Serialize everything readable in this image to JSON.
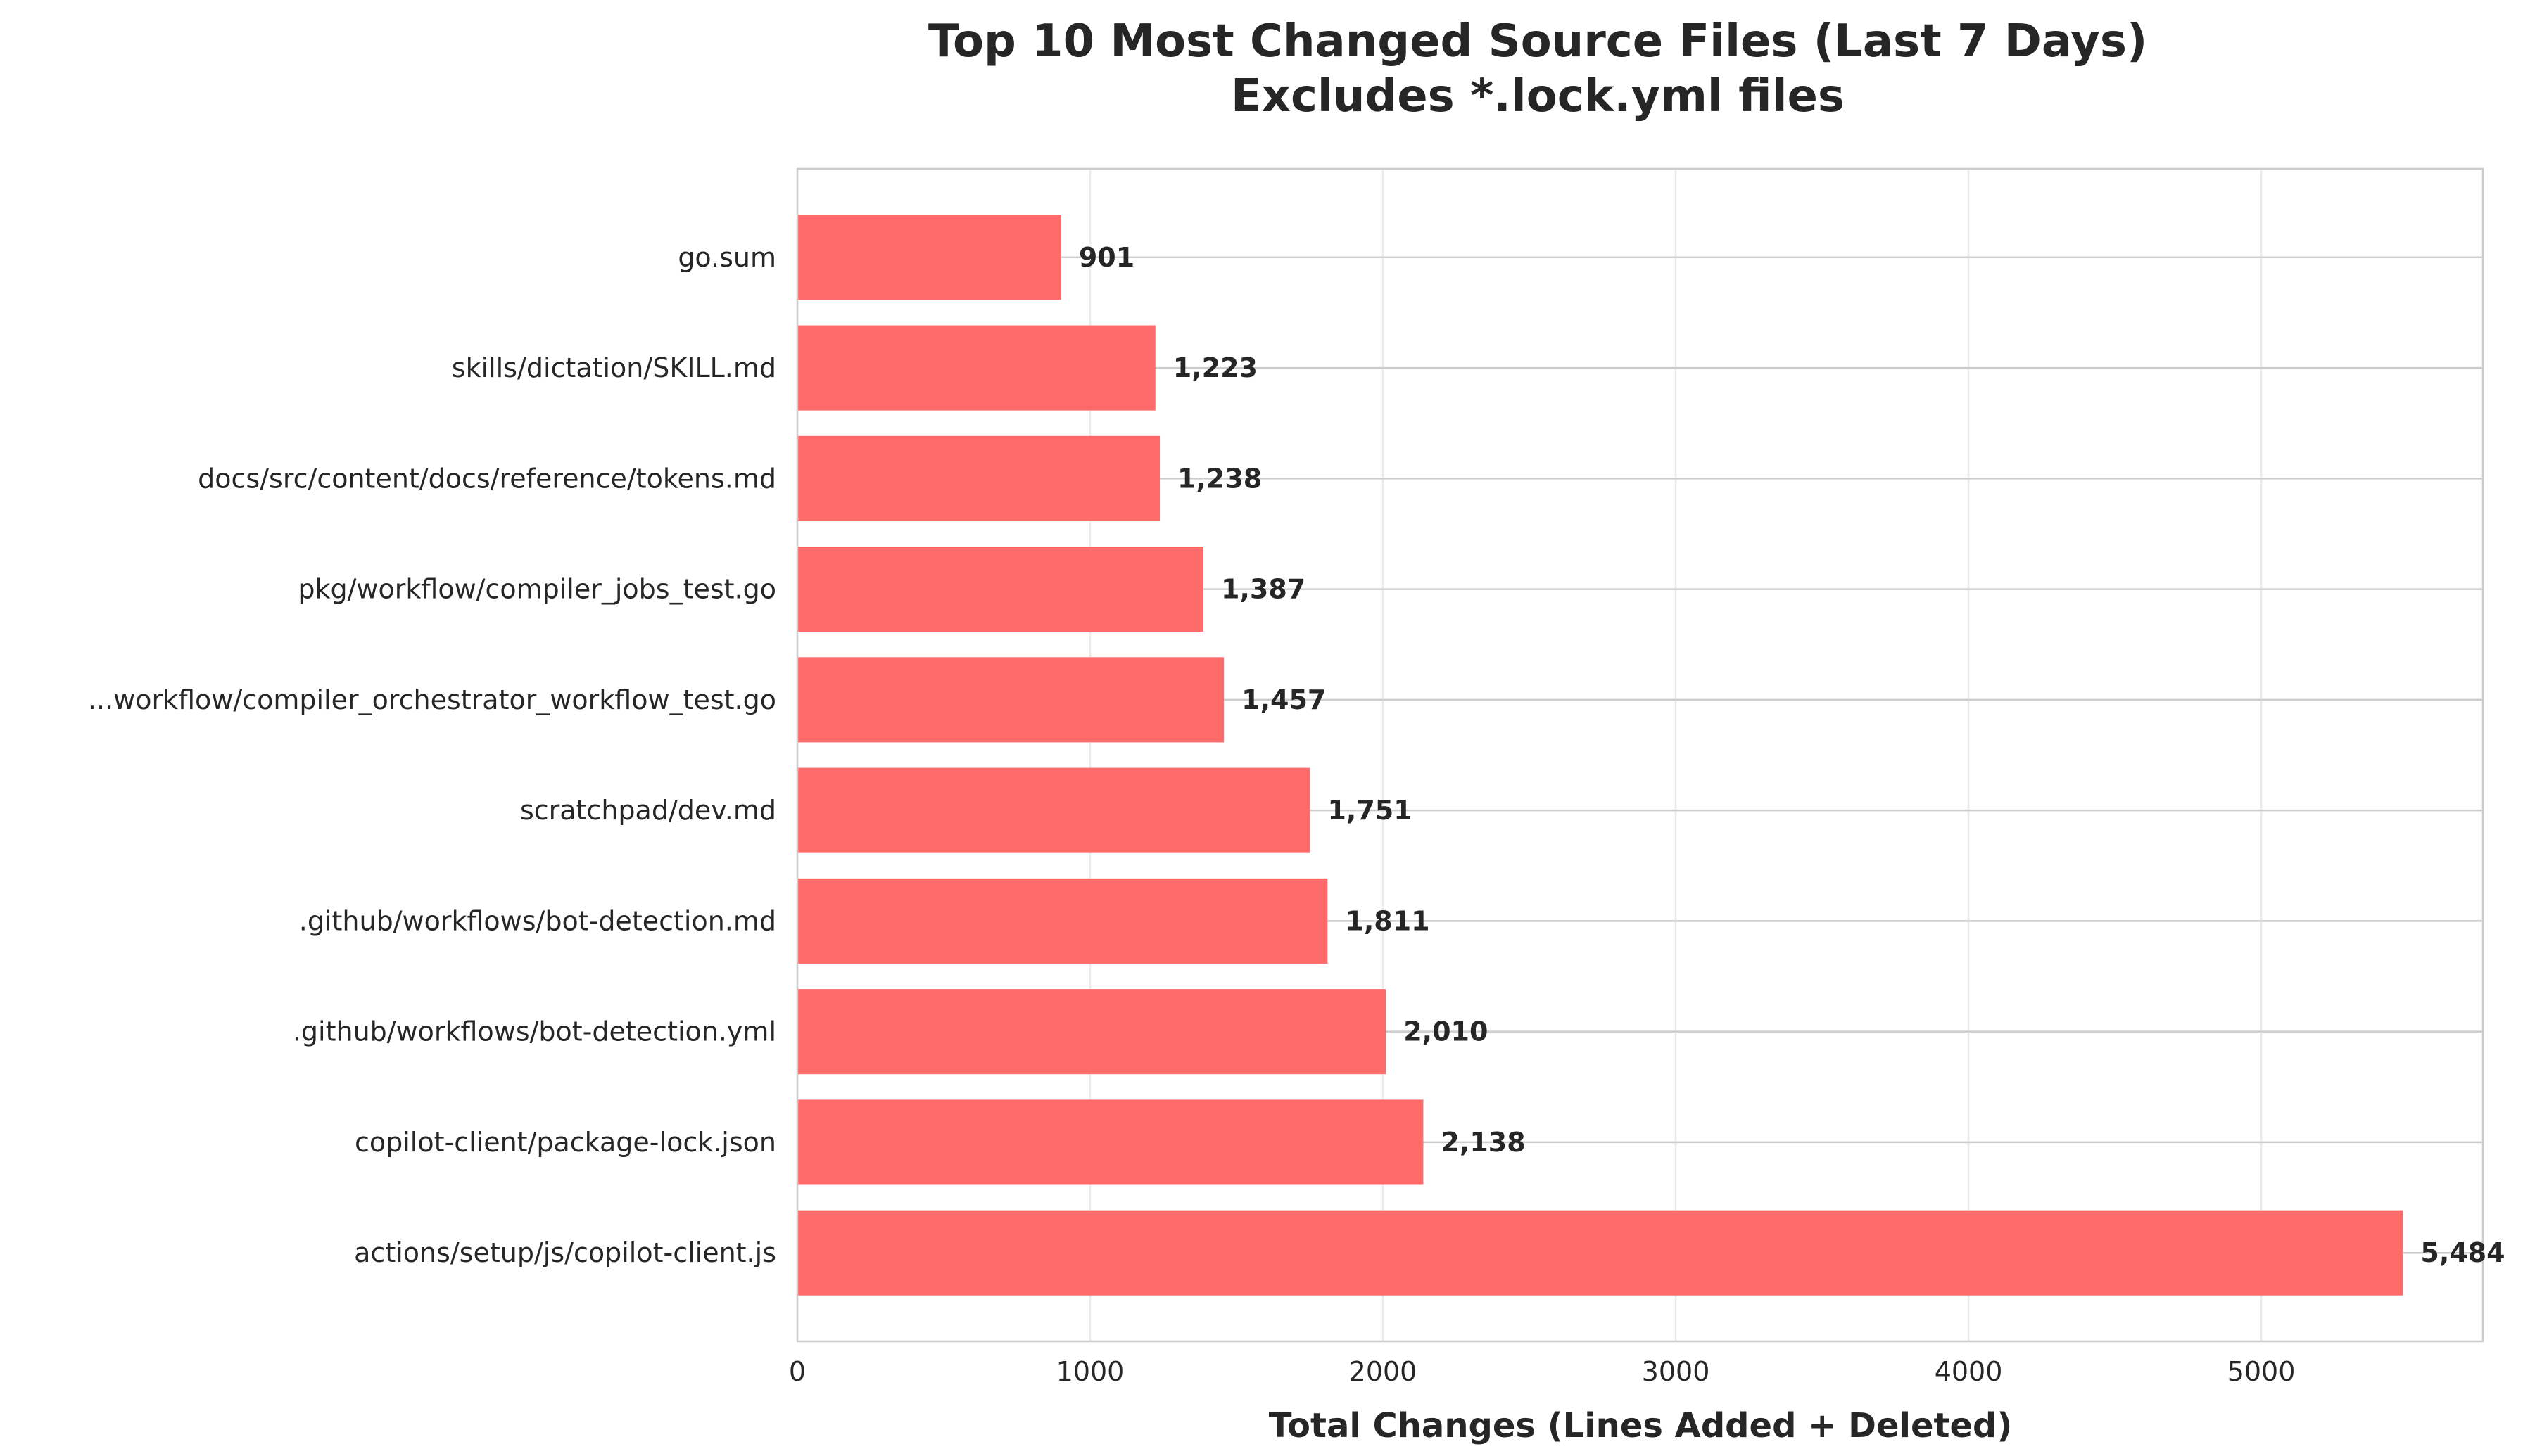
{
  "chart_data": {
    "type": "bar",
    "orientation": "horizontal",
    "title_line1": "Top 10 Most Changed Source Files (Last 7 Days)",
    "title_line2": "Excludes *.lock.yml files",
    "xlabel": "Total Changes (Lines Added + Deleted)",
    "ylabel": "",
    "xlim": [
      0,
      5757
    ],
    "xticks": [
      0,
      1000,
      2000,
      3000,
      4000,
      5000
    ],
    "grid": true,
    "bar_color": "#ff6b6b",
    "categories": [
      "go.sum",
      "skills/dictation/SKILL.md",
      "docs/src/content/docs/reference/tokens.md",
      "pkg/workflow/compiler_jobs_test.go",
      "...workflow/compiler_orchestrator_workflow_test.go",
      "scratchpad/dev.md",
      ".github/workflows/bot-detection.md",
      ".github/workflows/bot-detection.yml",
      "copilot-client/package-lock.json",
      "actions/setup/js/copilot-client.js"
    ],
    "values": [
      901,
      1223,
      1238,
      1387,
      1457,
      1751,
      1811,
      2010,
      2138,
      5484
    ],
    "value_labels": [
      "901",
      "1,223",
      "1,238",
      "1,387",
      "1,457",
      "1,751",
      "1,811",
      "2,010",
      "2,138",
      "5,484"
    ]
  }
}
